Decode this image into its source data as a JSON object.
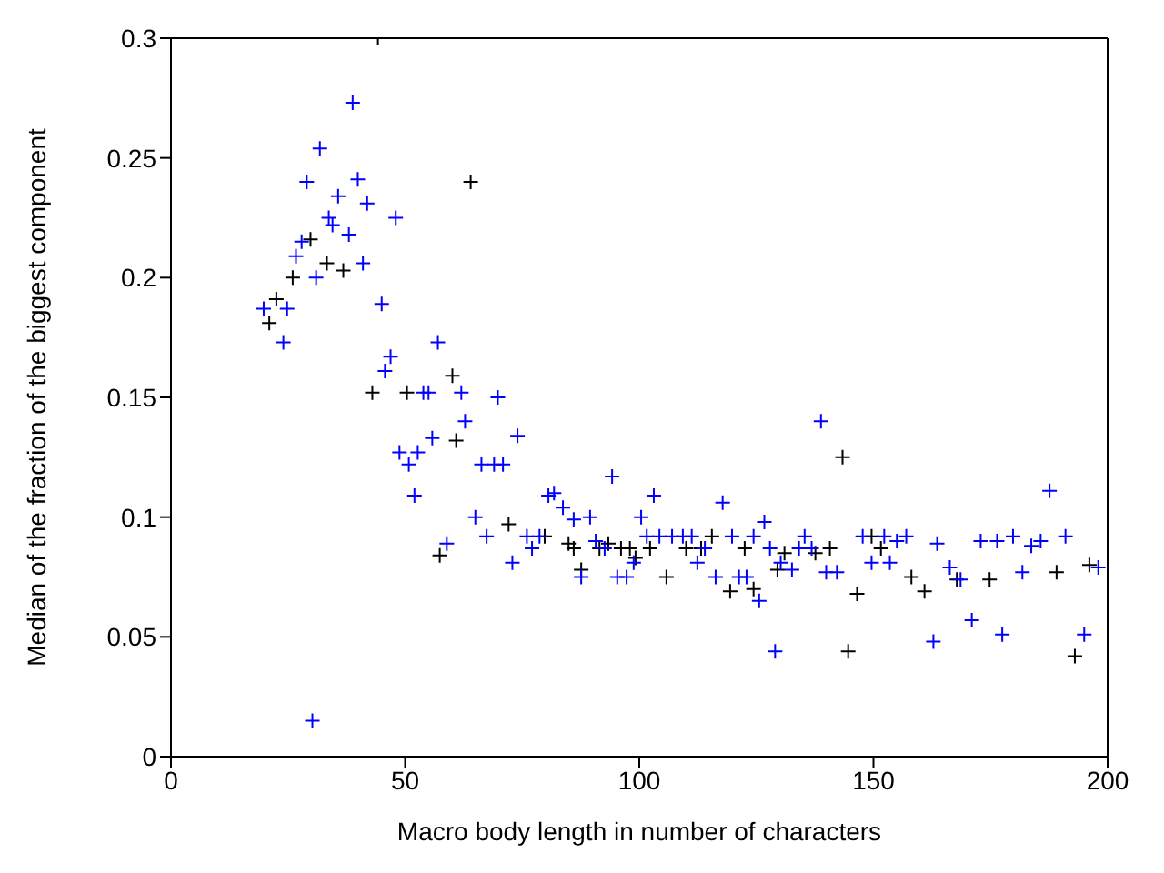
{
  "chart_data": {
    "type": "scatter",
    "xlabel": "Macro body length in number of characters",
    "ylabel": "Median of the fraction of the biggest component",
    "xlim": [
      0,
      200
    ],
    "ylim": [
      0,
      0.3
    ],
    "xticks": [
      0,
      50,
      100,
      150,
      200
    ],
    "yticks": [
      0,
      0.05,
      0.1,
      0.15,
      0.2,
      0.25,
      0.3
    ],
    "marker": "cross",
    "series": [
      {
        "color": "#000000",
        "x": [
          21,
          22.5,
          26,
          29.8,
          33.3,
          36.8,
          43,
          44.2,
          50.4,
          57.4,
          60.1,
          60.9,
          64,
          72.1,
          79.8,
          84.9,
          86,
          87.6,
          91.5,
          93.4,
          96.1,
          98,
          99.2,
          102.3,
          105.8,
          110,
          113.2,
          115.5,
          119.4,
          122.5,
          124.4,
          129.5,
          131,
          137.6,
          140.7,
          143.4,
          144.6,
          146.5,
          149.6,
          151.6,
          158.1,
          160.9,
          167.8,
          174.8,
          189.1,
          193,
          196.1
        ],
        "values": [
          0.181,
          0.191,
          0.2,
          0.216,
          0.206,
          0.203,
          0.152,
          0.3,
          0.152,
          0.084,
          0.159,
          0.132,
          0.24,
          0.097,
          0.092,
          0.089,
          0.087,
          0.078,
          0.087,
          0.089,
          0.087,
          0.087,
          0.083,
          0.087,
          0.075,
          0.087,
          0.087,
          0.092,
          0.069,
          0.087,
          0.07,
          0.078,
          0.085,
          0.085,
          0.087,
          0.125,
          0.044,
          0.068,
          0.092,
          0.087,
          0.075,
          0.069,
          0.074,
          0.074,
          0.077,
          0.042,
          0.08
        ]
      },
      {
        "color": "#0000ff",
        "x": [
          19.8,
          24,
          24.8,
          26.7,
          27.9,
          29,
          30.2,
          31,
          31.8,
          33.7,
          34.5,
          35.7,
          38,
          38.8,
          39.9,
          41,
          41.9,
          45,
          45.7,
          46.9,
          48,
          48.8,
          50.8,
          52,
          52.7,
          53.9,
          55,
          55.8,
          57,
          58.9,
          62,
          62.8,
          65,
          66.3,
          67.4,
          69,
          69.8,
          70.9,
          72.9,
          74,
          76,
          77.1,
          78.7,
          80.6,
          81.8,
          83.7,
          86,
          87.6,
          89.5,
          90.7,
          92.6,
          94.2,
          95.3,
          97.3,
          98.8,
          100.4,
          101.6,
          103.1,
          104.3,
          107,
          109.3,
          111.2,
          112.4,
          114,
          116.3,
          117.8,
          119.8,
          121.3,
          122.9,
          124.4,
          125.6,
          126.7,
          127.9,
          129,
          130.2,
          132.6,
          134.1,
          135.3,
          136.8,
          138.8,
          139.9,
          142.2,
          147.7,
          149.6,
          152.3,
          153.5,
          155,
          157,
          162.8,
          163.6,
          166.3,
          168.6,
          171,
          172.9,
          176.4,
          177.5,
          179.8,
          181.8,
          183.7,
          185.7,
          187.6,
          191,
          195,
          198
        ],
        "values": [
          0.187,
          0.173,
          0.187,
          0.209,
          0.215,
          0.24,
          0.015,
          0.2,
          0.254,
          0.225,
          0.222,
          0.234,
          0.218,
          0.273,
          0.241,
          0.206,
          0.231,
          0.189,
          0.161,
          0.167,
          0.225,
          0.127,
          0.122,
          0.109,
          0.127,
          0.152,
          0.152,
          0.133,
          0.173,
          0.089,
          0.152,
          0.14,
          0.1,
          0.122,
          0.092,
          0.122,
          0.15,
          0.122,
          0.081,
          0.134,
          0.092,
          0.087,
          0.092,
          0.109,
          0.11,
          0.104,
          0.099,
          0.075,
          0.1,
          0.09,
          0.087,
          0.117,
          0.075,
          0.075,
          0.081,
          0.1,
          0.092,
          0.109,
          0.092,
          0.092,
          0.092,
          0.092,
          0.081,
          0.087,
          0.075,
          0.106,
          0.092,
          0.075,
          0.075,
          0.092,
          0.065,
          0.098,
          0.087,
          0.044,
          0.081,
          0.078,
          0.087,
          0.092,
          0.087,
          0.14,
          0.077,
          0.077,
          0.092,
          0.081,
          0.092,
          0.081,
          0.09,
          0.092,
          0.048,
          0.089,
          0.079,
          0.074,
          0.057,
          0.09,
          0.09,
          0.051,
          0.092,
          0.077,
          0.088,
          0.09,
          0.111,
          0.092,
          0.051,
          0.079
        ]
      }
    ]
  }
}
